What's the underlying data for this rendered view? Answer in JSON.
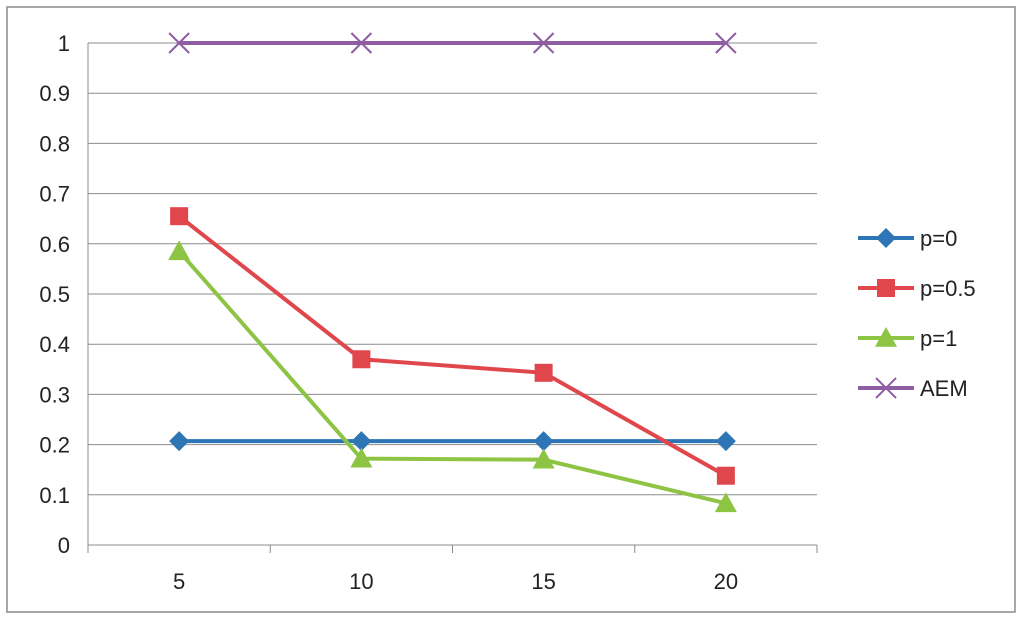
{
  "chart_data": {
    "type": "line",
    "categories": [
      "5",
      "10",
      "15",
      "20"
    ],
    "ylim": [
      0,
      1
    ],
    "yticks": [
      "0",
      "0.1",
      "0.2",
      "0.3",
      "0.4",
      "0.5",
      "0.6",
      "0.7",
      "0.8",
      "0.9",
      "1"
    ],
    "grid": "horizontal",
    "legend_position": "right",
    "series": [
      {
        "name": "p=0",
        "values": [
          0.207,
          0.207,
          0.207,
          0.207
        ],
        "color": "#2E75B6",
        "marker": "diamond"
      },
      {
        "name": "p=0.5",
        "values": [
          0.655,
          0.37,
          0.343,
          0.138
        ],
        "color": "#E0474C",
        "marker": "square"
      },
      {
        "name": "p=1",
        "values": [
          0.585,
          0.172,
          0.17,
          0.083
        ],
        "color": "#8DC444",
        "marker": "triangle"
      },
      {
        "name": "AEM",
        "values": [
          1.0,
          1.0,
          1.0,
          1.0
        ],
        "color": "#8E5EA2",
        "marker": "x"
      }
    ]
  }
}
